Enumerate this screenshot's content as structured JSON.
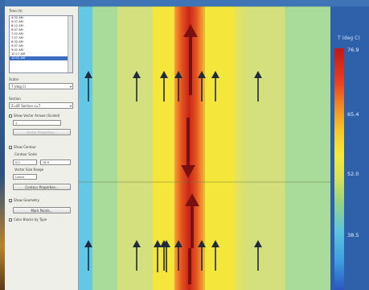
{
  "panel": {
    "title_label": "Time (h)",
    "list_items": [
      "4:52 AM",
      "5:37 AM",
      "6:12 AM",
      "6:47 AM",
      "7:22 AM",
      "7:57 AM",
      "8:32 AM",
      "9:07 AM",
      "9:42 AM",
      "10:17 AM",
      "10:52 AM"
    ],
    "selected_index": 10,
    "scalar_label": "Scalar",
    "scalar_value": "T (deg C)",
    "section_label": "Section",
    "section_value": "Z=8F Section z=7",
    "show_vel_label": "Show Vector Arrows (Scaled)",
    "step_value": "1",
    "vector_props_button": "Vector Properties...",
    "show_contour_label": "Show Contour",
    "contour_scale_label": "Contour Scale",
    "contour_min": "0.0",
    "contour_max": "78.9",
    "range_label": "Vector Size Range",
    "range_value": "Linear",
    "contour_props_button": "Contour Properties...",
    "show_geom_label": "Show Geometry",
    "mark_points_button": "Mark Points...",
    "color_by_label": "Color Blocks by Type"
  },
  "legend": {
    "title": "T (deg C)",
    "ticks": [
      "76.9",
      "65.4",
      "52.0",
      "38.5"
    ]
  },
  "colors": {
    "hot": "#c9251a",
    "arrow": "#1f2a3d",
    "arrow_hot": "#7a1110"
  }
}
